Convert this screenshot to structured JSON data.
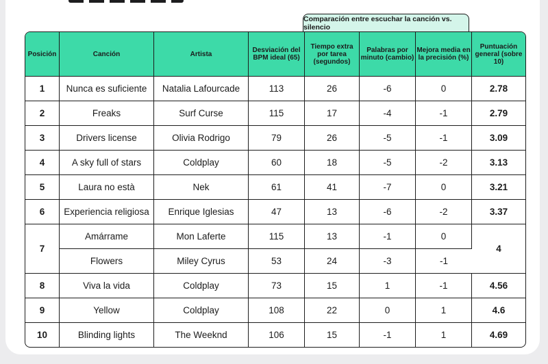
{
  "comparison_header": "Comparación entre escuchar la canción vs. silencio",
  "columns": [
    "Posición",
    "Canción",
    "Artista",
    "Desviación del BPM ideal (65)",
    "Tiempo extra por tarea (segundos)",
    "Palabras por minuto (cambio)",
    "Mejora media en la precisión (%)",
    "Puntuación general (sobre 10)"
  ],
  "rows": [
    {
      "pos": "1",
      "song": "Nunca es suficiente",
      "artist": "Natalia Lafourcade",
      "bpm": "113",
      "time": "26",
      "words": "-6",
      "accuracy": "0",
      "score": "2.78"
    },
    {
      "pos": "2",
      "song": "Freaks",
      "artist": "Surf Curse",
      "bpm": "115",
      "time": "17",
      "words": "-4",
      "accuracy": "-1",
      "score": "2.79"
    },
    {
      "pos": "3",
      "song": "Drivers license",
      "artist": "Olivia Rodrigo",
      "bpm": "79",
      "time": "26",
      "words": "-5",
      "accuracy": "-1",
      "score": "3.09"
    },
    {
      "pos": "4",
      "song": "A sky full of stars",
      "artist": "Coldplay",
      "bpm": "60",
      "time": "18",
      "words": "-5",
      "accuracy": "-2",
      "score": "3.13"
    },
    {
      "pos": "5",
      "song": "Laura no està",
      "artist": "Nek",
      "bpm": "61",
      "time": "41",
      "words": "-7",
      "accuracy": "0",
      "score": "3.21"
    },
    {
      "pos": "6",
      "song": "Experiencia religiosa",
      "artist": "Enrique Iglesias",
      "bpm": "47",
      "time": "13",
      "words": "-6",
      "accuracy": "-2",
      "score": "3.37"
    },
    {
      "pos": "7",
      "song": "Amárrame",
      "artist": "Mon Laferte",
      "bpm": "115",
      "time": "13",
      "words": "-1",
      "accuracy": "0",
      "score": "4"
    },
    {
      "song": "Flowers",
      "artist": "Miley Cyrus",
      "bpm": "53",
      "time": "24",
      "words": "-3",
      "accuracy": "-1"
    },
    {
      "pos": "8",
      "song": "Viva la vida",
      "artist": "Coldplay",
      "bpm": "73",
      "time": "15",
      "words": "1",
      "accuracy": "-1",
      "score": "4.56"
    },
    {
      "pos": "9",
      "song": "Yellow",
      "artist": "Coldplay",
      "bpm": "108",
      "time": "22",
      "words": "0",
      "accuracy": "1",
      "score": "4.6"
    },
    {
      "pos": "10",
      "song": "Blinding lights",
      "artist": "The Weeknd",
      "bpm": "106",
      "time": "15",
      "words": "-1",
      "accuracy": "1",
      "score": "4.69"
    }
  ],
  "colors": {
    "header_bg": "#3ddaa8",
    "tab_bg": "#d4f5ea",
    "border": "#1c1c1c",
    "page_bg": "#ececee"
  }
}
